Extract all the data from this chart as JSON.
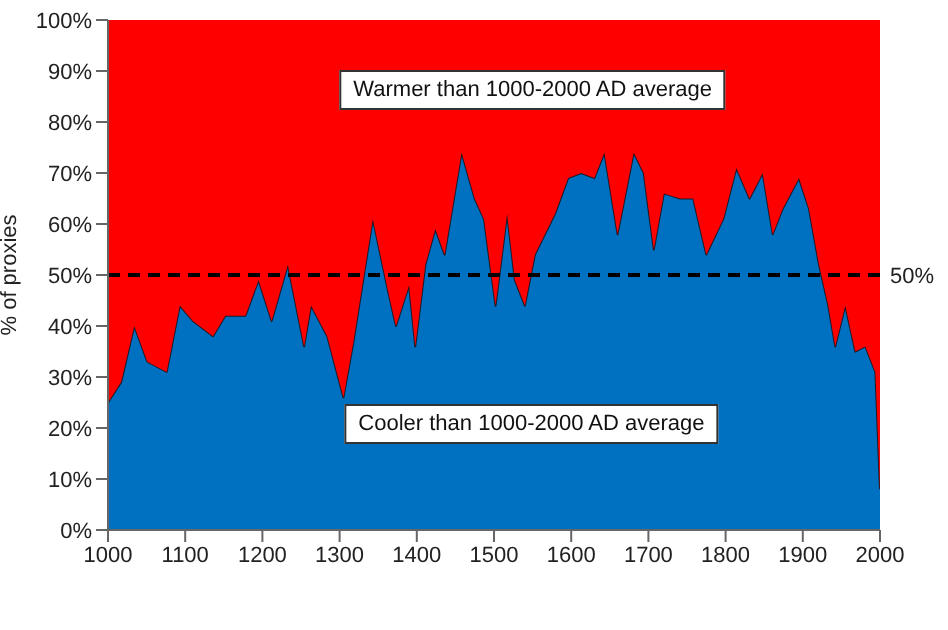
{
  "chart_data": {
    "type": "area",
    "stacked": true,
    "ylabel": "% of proxies",
    "xlim": [
      1000,
      2000
    ],
    "xticks": [
      1000,
      1100,
      1200,
      1300,
      1400,
      1500,
      1600,
      1700,
      1800,
      1900,
      2000
    ],
    "ylim": [
      0,
      100
    ],
    "yticks": [
      {
        "value": 0,
        "label": "0%"
      },
      {
        "value": 10,
        "label": "10%"
      },
      {
        "value": 20,
        "label": "20%"
      },
      {
        "value": 30,
        "label": "30%"
      },
      {
        "value": 40,
        "label": "40%"
      },
      {
        "value": 50,
        "label": "50%"
      },
      {
        "value": 60,
        "label": "60%"
      },
      {
        "value": 70,
        "label": "70%"
      },
      {
        "value": 80,
        "label": "80%"
      },
      {
        "value": 90,
        "label": "90%"
      },
      {
        "value": 100,
        "label": "100%"
      }
    ],
    "grid": false,
    "legend": false,
    "x": [
      1000,
      1017,
      1034,
      1051,
      1076,
      1093,
      1110,
      1136,
      1152,
      1178,
      1195,
      1212,
      1233,
      1254,
      1263,
      1284,
      1305,
      1318,
      1343,
      1364,
      1373,
      1390,
      1398,
      1411,
      1424,
      1436,
      1458,
      1475,
      1487,
      1502,
      1517,
      1527,
      1540,
      1553,
      1579,
      1596,
      1613,
      1630,
      1643,
      1660,
      1681,
      1694,
      1707,
      1720,
      1741,
      1758,
      1775,
      1797,
      1814,
      1831,
      1848,
      1861,
      1874,
      1895,
      1908,
      1921,
      1933,
      1942,
      1955,
      1968,
      1981,
      1994,
      2000
    ],
    "series": [
      {
        "name": "Cooler than 1000-2000 AD average",
        "color": "#0070c0",
        "values": [
          25,
          29,
          40,
          33,
          31,
          44,
          41,
          38,
          42,
          42,
          49,
          41,
          52,
          36,
          44,
          38,
          26,
          37,
          61,
          46,
          40,
          48,
          36,
          52,
          59,
          54,
          74,
          65,
          61,
          44,
          62,
          49,
          44,
          54,
          62,
          69,
          70,
          69,
          74,
          58,
          74,
          70,
          55,
          66,
          65,
          65,
          54,
          61,
          71,
          65,
          70,
          58,
          63,
          69,
          63,
          52,
          44,
          36,
          44,
          35,
          36,
          31,
          8
        ]
      },
      {
        "name": "Warmer than 1000-2000 AD average",
        "color": "#ff0000",
        "values": [
          75,
          71,
          60,
          67,
          69,
          56,
          59,
          62,
          58,
          58,
          51,
          59,
          48,
          64,
          56,
          62,
          74,
          63,
          39,
          54,
          60,
          52,
          64,
          48,
          41,
          46,
          26,
          35,
          39,
          56,
          38,
          51,
          56,
          46,
          38,
          31,
          30,
          31,
          26,
          42,
          26,
          30,
          45,
          34,
          35,
          35,
          46,
          39,
          29,
          35,
          30,
          42,
          37,
          31,
          37,
          48,
          56,
          64,
          56,
          65,
          64,
          69,
          92
        ]
      }
    ],
    "ref_lines": [
      {
        "axis": "y",
        "value": 50,
        "label": "50%",
        "color": "#000000",
        "line_style": "dashed"
      }
    ]
  }
}
